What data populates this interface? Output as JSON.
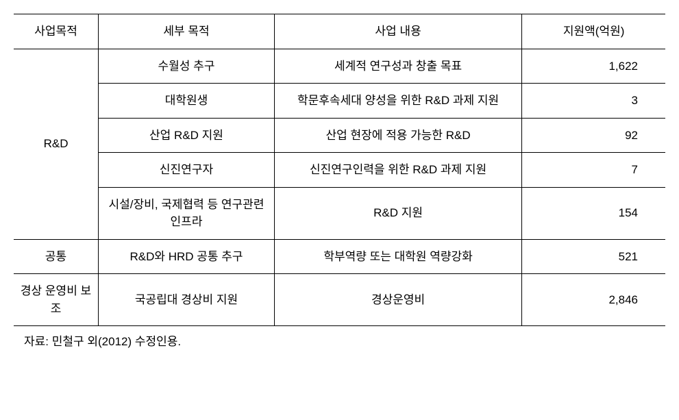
{
  "table": {
    "headers": {
      "col1": "사업목적",
      "col2": "세부 목적",
      "col3": "사업 내용",
      "col4": "지원액(억원)"
    },
    "columns_width": [
      "13%",
      "27%",
      "38%",
      "22%"
    ],
    "rows": [
      {
        "purpose": "R&D",
        "purpose_rowspan": 5,
        "detail": "수월성 추구",
        "content": "세계적 연구성과 창출 목표",
        "amount": "1,622"
      },
      {
        "detail": "대학원생",
        "content": "학문후속세대 양성을 위한 R&D 과제 지원",
        "amount": "3"
      },
      {
        "detail": "산업 R&D 지원",
        "content": "산업 현장에 적용 가능한 R&D",
        "amount": "92"
      },
      {
        "detail": "신진연구자",
        "content": "신진연구인력을 위한 R&D 과제 지원",
        "amount": "7"
      },
      {
        "detail": "시설/장비, 국제협력 등 연구관련 인프라",
        "content": "R&D 지원",
        "amount": "154"
      },
      {
        "purpose": "공통",
        "purpose_rowspan": 1,
        "detail": "R&D와 HRD 공통 추구",
        "content": "학부역량 또는 대학원 역량강화",
        "amount": "521"
      },
      {
        "purpose": "경상 운영비 보조",
        "purpose_rowspan": 1,
        "detail": "국공립대 경상비 지원",
        "content": "경상운영비",
        "amount": "2,846"
      }
    ],
    "source_note": "자료: 민철구 외(2012) 수정인용.",
    "styling": {
      "border_color": "#000000",
      "background_color": "#ffffff",
      "font_size": 17,
      "header_border_width": 1.5,
      "body_border_width": 1,
      "text_align_default": "center",
      "text_align_amount": "right"
    }
  }
}
